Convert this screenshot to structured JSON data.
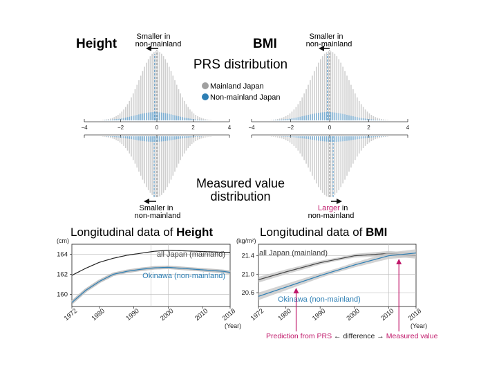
{
  "panels": {
    "height_title": "Height",
    "bmi_title": "BMI",
    "prs_title": "PRS distribution",
    "measured_title_line1": "Measured value",
    "measured_title_line2": "distribution",
    "legend": {
      "mainland": "Mainland Japan",
      "nonmainland": "Non-mainland Japan"
    },
    "height_prs_note": [
      "Smaller in",
      "non-mainland"
    ],
    "height_meas_note": [
      "Smaller in",
      "non-mainland"
    ],
    "bmi_prs_note": [
      "Smaller in",
      "non-mainland"
    ],
    "bmi_meas_note": [
      "Larger",
      " in",
      "non-mainland"
    ],
    "prs_axis_ticks": [
      -4,
      -2,
      0,
      2,
      4
    ],
    "prs_axis_tick_labels": [
      "−4",
      "−2",
      "0",
      "2",
      "4"
    ]
  },
  "colors": {
    "mainland": "#a0a0a0",
    "nonmainland": "#2e7fb4",
    "highlight": "#c0186a",
    "arrow": "#111111"
  },
  "chart_data": [
    {
      "type": "line",
      "title_prefix": "Longitudinal data of ",
      "title_bold": "Height",
      "ylabel": "(cm)",
      "xlabel": "(Year)",
      "xlim": [
        1972,
        2018
      ],
      "ylim": [
        158.8,
        165.0
      ],
      "xticks": [
        1972,
        1980,
        1990,
        2000,
        2010,
        2018
      ],
      "yticks": [
        160,
        162,
        164
      ],
      "grid": true,
      "series": [
        {
          "name": "all Japan (mainland)",
          "color": "#222222",
          "x": [
            1972,
            1976,
            1980,
            1984,
            1988,
            1992,
            1996,
            2000,
            2004,
            2008,
            2012,
            2016,
            2018
          ],
          "y": [
            161.9,
            162.6,
            163.2,
            163.6,
            163.9,
            164.1,
            164.3,
            164.4,
            164.35,
            164.3,
            164.25,
            164.2,
            164.2
          ]
        },
        {
          "name": "Okinawa (non-mainland)",
          "color": "#2e7fb4",
          "x": [
            1972,
            1976,
            1980,
            1984,
            1988,
            1992,
            1996,
            2000,
            2004,
            2008,
            2012,
            2016,
            2018
          ],
          "y": [
            159.2,
            160.4,
            161.3,
            162.0,
            162.3,
            162.5,
            162.65,
            162.7,
            162.6,
            162.5,
            162.4,
            162.3,
            162.2
          ]
        }
      ]
    },
    {
      "type": "line",
      "title_prefix": "Longitudinal data of ",
      "title_bold": "BMI",
      "ylabel": "(kg/m²)",
      "xlabel": "(Year)",
      "xlim": [
        1972,
        2018
      ],
      "ylim": [
        20.3,
        21.65
      ],
      "xticks": [
        1972,
        1980,
        1990,
        2000,
        2010,
        2018
      ],
      "yticks": [
        20.6,
        21.0,
        21.4
      ],
      "grid": true,
      "series": [
        {
          "name": "all Japan (mainland)",
          "color": "#444444",
          "x": [
            1972,
            1980,
            1990,
            2000,
            2010,
            2018
          ],
          "y": [
            20.88,
            21.05,
            21.25,
            21.4,
            21.45,
            21.4
          ]
        },
        {
          "name": "Okinawa (non-mainland)",
          "color": "#2e7fb4",
          "x": [
            1972,
            1980,
            1990,
            2000,
            2010,
            2018
          ],
          "y": [
            20.52,
            20.72,
            20.97,
            21.2,
            21.4,
            21.46
          ]
        }
      ],
      "annotations": {
        "prediction": "Prediction from PRS",
        "difference": " ← difference → ",
        "measured": "Measured value",
        "prediction_year": 1983,
        "measured_year": 2013
      }
    }
  ]
}
